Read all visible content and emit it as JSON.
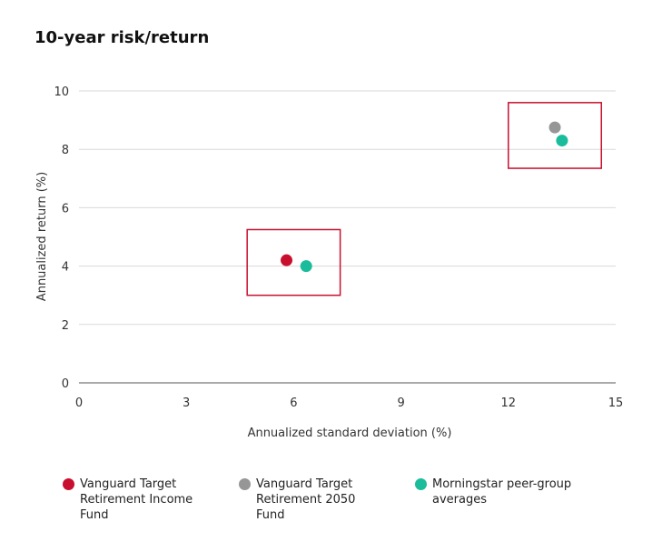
{
  "title": "10-year risk/return",
  "chart_data": {
    "type": "scatter",
    "title": "10-year risk/return",
    "xlabel": "Annualized standard deviation (%)",
    "ylabel": "Annualized return (%)",
    "xlim": [
      0,
      15
    ],
    "ylim": [
      0,
      10
    ],
    "xticks": [
      0,
      3,
      6,
      9,
      12,
      15
    ],
    "yticks": [
      0,
      2,
      4,
      6,
      8,
      10
    ],
    "grid": "horizontal",
    "legend_position": "bottom",
    "series": [
      {
        "name": "Vanguard Target Retirement Income Fund",
        "color": "#c8102e",
        "points": [
          {
            "x": 5.8,
            "y": 4.2
          }
        ]
      },
      {
        "name": "Vanguard Target Retirement 2050 Fund",
        "color": "#969696",
        "points": [
          {
            "x": 13.3,
            "y": 8.75
          }
        ]
      },
      {
        "name": "Morningstar peer-group averages",
        "color": "#1abc9c",
        "points": [
          {
            "x": 6.35,
            "y": 4.0
          },
          {
            "x": 13.5,
            "y": 8.3
          }
        ]
      }
    ],
    "highlight_boxes": [
      {
        "x0": 4.7,
        "x1": 7.3,
        "y0": 3.0,
        "y1": 5.25,
        "color": "#c8102e"
      },
      {
        "x0": 12.0,
        "x1": 14.6,
        "y0": 7.35,
        "y1": 9.6,
        "color": "#c8102e"
      }
    ]
  },
  "legend": [
    {
      "lines": [
        "Vanguard Target",
        "Retirement Income",
        "Fund"
      ],
      "color": "#c8102e"
    },
    {
      "lines": [
        "Vanguard Target",
        "Retirement 2050",
        "Fund"
      ],
      "color": "#969696"
    },
    {
      "lines": [
        "Morningstar peer-group",
        "averages"
      ],
      "color": "#1abc9c"
    }
  ]
}
